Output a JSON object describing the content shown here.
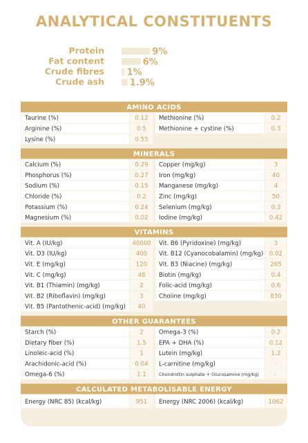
{
  "header": {
    "title": "ANALYTICAL CONSTITUENTS"
  },
  "constituents": [
    {
      "label": "Protein",
      "value": 9,
      "value_label": "9%"
    },
    {
      "label": "Fat content",
      "value": 6,
      "value_label": "6%"
    },
    {
      "label": "Crude fibres",
      "value": 1,
      "value_label": "1%"
    },
    {
      "label": "Crude ash",
      "value": 1.9,
      "value_label": "1.9%"
    }
  ],
  "sections": [
    {
      "title": "AMINO ACIDS",
      "rows": [
        [
          "Taurine (%)",
          "0.12",
          "Methionine (%)",
          "0.2"
        ],
        [
          "Arginine (%)",
          "0.5",
          "Methionine + cystine (%)",
          "0.3"
        ],
        [
          "Lysine (%)",
          "0.55"
        ]
      ]
    },
    {
      "title": "MINERALS",
      "rows": [
        [
          "Calcium (%)",
          "0.29",
          "Copper (mg/kg)",
          "3"
        ],
        [
          "Phosphorus (%)",
          "0.27",
          "Iron (mg/kg)",
          "40"
        ],
        [
          "Sodium (%)",
          "0.15",
          "Manganese (mg/kg)",
          "4"
        ],
        [
          "Chloride (%)",
          "0.2",
          "Zinc (mg/kg)",
          "50"
        ],
        [
          "Potassium (%)",
          "0.24",
          "Selenium (mg/kg)",
          "0.3"
        ],
        [
          "Magnesium (%)",
          "0.02",
          "Iodine (mg/kg)",
          "0.42"
        ]
      ]
    },
    {
      "title": "VITAMINS",
      "rows": [
        [
          "Vit. A (IU/kg)",
          "40000",
          "Vit. B6 (Pyridoxine) (mg/kg)",
          "3"
        ],
        [
          "Vit. D3 (IU/kg)",
          "400",
          "Vit. B12 (Cyanocobalamin) (mg/kg)",
          "0.02"
        ],
        [
          "Vit. E (mg/kg)",
          "120",
          "Vit. B3 (Niacine) (mg/kg)",
          "265"
        ],
        [
          "Vit. C (mg/kg)",
          "48",
          "Biotin (mg/kg)",
          "0.4"
        ],
        [
          "Vit. B1 (Thiamin) (mg/kg)",
          "2",
          "Folic-acid (mg/kg)",
          "0.6"
        ],
        [
          "Vit. B2 (Riboflavin) (mg/kg)",
          "3",
          "Choline (mg/kg)",
          "830"
        ],
        [
          "Vit. B5 (Pantothenic-acid) (mg/kg)",
          "40"
        ]
      ]
    },
    {
      "title": "OTHER GUARANTEES",
      "rows": [
        [
          "Starch (%)",
          "2",
          "Omega-3 (%)",
          "0.2"
        ],
        [
          "Dietary fiber (%)",
          "1.5",
          "EPA + DHA (%)",
          "0.12"
        ],
        [
          "Linoleic-acid (%)",
          "1",
          "Lutein (mg/kg)",
          "1.2"
        ],
        [
          "Arachidonic-acid (%)",
          "0.04",
          "L-carnitine (mg/kg)",
          "-"
        ],
        [
          "Omega-6 (%)",
          "1.1",
          "Chondroïtin sulphate + Glucosamine (mg/kg)",
          "-"
        ]
      ]
    },
    {
      "title": "CALCULATED METABOLISABLE ENERGY",
      "rows": [
        [
          "Energy (NRC 85) (kcal/kg)",
          "951",
          "Energy (NRC 2006) (kcal/kg)",
          "1062"
        ]
      ]
    }
  ]
}
